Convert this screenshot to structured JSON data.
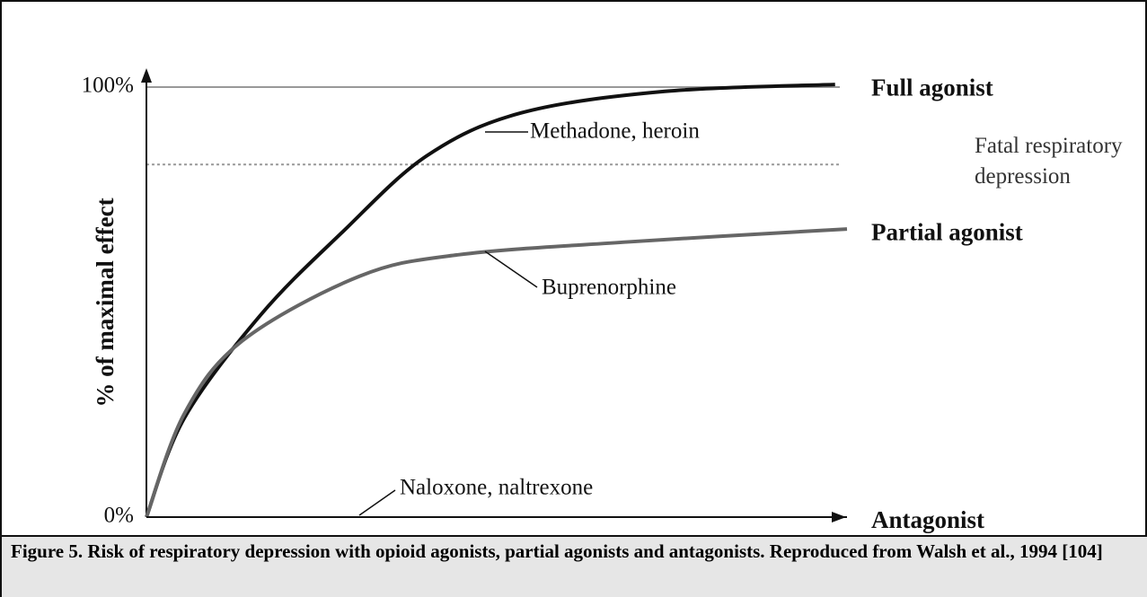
{
  "chart_data": {
    "type": "line",
    "ylabel": "% of maximal effect",
    "xlim": [
      0,
      10
    ],
    "ylim": [
      0,
      100
    ],
    "yticks": [
      {
        "value": 0,
        "label": "0%"
      },
      {
        "value": 100,
        "label": "100%"
      }
    ],
    "grid": true,
    "series": [
      {
        "name": "Full agonist",
        "color": "#111111",
        "x": [
          0,
          0.54,
          1.63,
          2.78,
          4.0,
          5.35,
          7.4,
          9.83
        ],
        "values": [
          0,
          23,
          47,
          66,
          84,
          94,
          99,
          100.6
        ]
      },
      {
        "name": "Partial agonist",
        "color": "#666666",
        "x": [
          0,
          0.54,
          1.37,
          3.04,
          4.45,
          6.88,
          10
        ],
        "values": [
          0,
          24,
          41,
          56,
          61,
          64,
          67
        ]
      },
      {
        "name": "Antagonist",
        "color": "#111111",
        "x": [
          0,
          10
        ],
        "values": [
          0,
          0
        ]
      }
    ],
    "reference_line": {
      "value": 82,
      "label": "Fatal respiratory depression",
      "color": "#999999"
    },
    "annotations": [
      {
        "text": "Methadone, heroin"
      },
      {
        "text": "Buprenorphine"
      },
      {
        "text": "Naloxone, naltrexone"
      }
    ],
    "caption": "Figure 5. Risk of respiratory depression with opioid agonists, partial agonists and antagonists. Reproduced from Walsh et al., 1994 [104]"
  }
}
